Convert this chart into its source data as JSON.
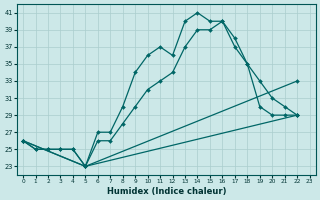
{
  "xlabel": "Humidex (Indice chaleur)",
  "ylabel": "",
  "background_color": "#cce8e8",
  "line_color": "#006666",
  "grid_color": "#aacece",
  "xlim": [
    -0.5,
    23.5
  ],
  "ylim": [
    22,
    42
  ],
  "yticks": [
    23,
    25,
    27,
    29,
    31,
    33,
    35,
    37,
    39,
    41
  ],
  "xticks": [
    0,
    1,
    2,
    3,
    4,
    5,
    6,
    7,
    8,
    9,
    10,
    11,
    12,
    13,
    14,
    15,
    16,
    17,
    18,
    19,
    20,
    21,
    22,
    23
  ],
  "lines": [
    {
      "x": [
        0,
        1,
        2,
        3,
        4,
        5,
        6,
        7,
        8,
        9,
        10,
        11,
        12,
        13,
        14,
        15,
        16,
        17,
        18,
        19,
        20,
        21,
        22
      ],
      "y": [
        26,
        25,
        25,
        25,
        25,
        23,
        27,
        27,
        30,
        34,
        36,
        37,
        36,
        40,
        41,
        40,
        40,
        38,
        35,
        33,
        31,
        30,
        29
      ]
    },
    {
      "x": [
        0,
        1,
        2,
        3,
        4,
        5,
        6,
        7,
        8,
        9,
        10,
        11,
        12,
        13,
        14,
        15,
        16,
        17,
        18,
        19,
        20,
        21,
        22
      ],
      "y": [
        26,
        25,
        25,
        25,
        25,
        23,
        26,
        26,
        28,
        30,
        32,
        33,
        34,
        37,
        39,
        39,
        40,
        37,
        35,
        30,
        29,
        29,
        29
      ]
    },
    {
      "x": [
        0,
        5,
        22
      ],
      "y": [
        26,
        23,
        29
      ]
    },
    {
      "x": [
        0,
        5,
        22
      ],
      "y": [
        26,
        23,
        33
      ]
    }
  ]
}
